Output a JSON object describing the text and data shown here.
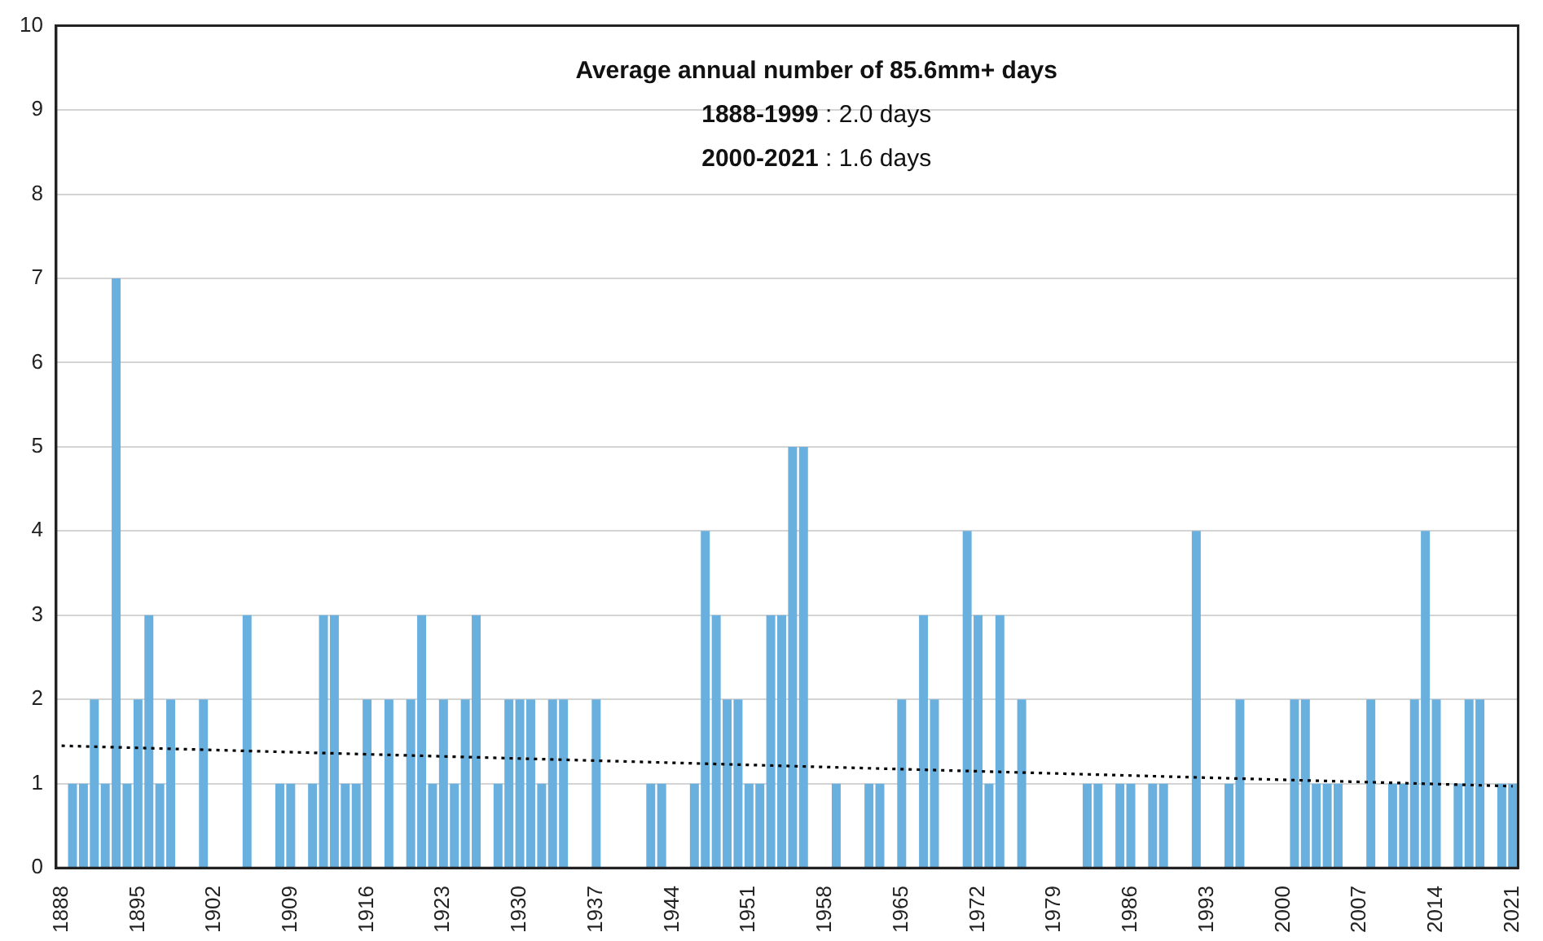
{
  "chart_data": {
    "type": "bar",
    "title": "Average annual number of 85.6mm+ days",
    "annotations": [
      "1888-1999 : 2.0 days",
      "2000-2021 : 1.6 days"
    ],
    "categories": [
      "1888",
      null,
      null,
      null,
      null,
      null,
      null,
      "1895",
      null,
      null,
      null,
      null,
      null,
      null,
      "1902",
      null,
      null,
      null,
      null,
      null,
      null,
      "1909",
      null,
      null,
      null,
      null,
      null,
      null,
      "1916",
      null,
      null,
      null,
      null,
      null,
      null,
      "1923",
      null,
      null,
      null,
      null,
      null,
      null,
      "1930",
      null,
      null,
      null,
      null,
      null,
      null,
      "1937",
      null,
      null,
      null,
      null,
      null,
      null,
      "1944",
      null,
      null,
      null,
      null,
      null,
      null,
      "1951",
      null,
      null,
      null,
      null,
      null,
      null,
      "1958",
      null,
      null,
      null,
      null,
      null,
      null,
      "1965",
      null,
      null,
      null,
      null,
      null,
      null,
      "1972",
      null,
      null,
      null,
      null,
      null,
      null,
      "1979",
      null,
      null,
      null,
      null,
      null,
      null,
      "1986",
      null,
      null,
      null,
      null,
      null,
      null,
      "1993",
      null,
      null,
      null,
      null,
      null,
      null,
      "2000",
      null,
      null,
      null,
      null,
      null,
      null,
      "2007",
      null,
      null,
      null,
      null,
      null,
      null,
      "2014",
      null,
      null,
      null,
      null,
      null,
      null,
      "2021"
    ],
    "series": [
      {
        "color": "#6ab0de",
        "values": [
          0,
          1,
          1,
          2,
          1,
          7,
          1,
          2,
          3,
          1,
          2,
          0,
          0,
          2,
          0,
          0,
          0,
          3,
          0,
          0,
          1,
          1,
          0,
          1,
          3,
          3,
          1,
          1,
          2,
          0,
          2,
          0,
          2,
          3,
          1,
          2,
          1,
          2,
          3,
          0,
          1,
          2,
          2,
          2,
          1,
          2,
          2,
          0,
          0,
          2,
          0,
          0,
          0,
          0,
          1,
          1,
          0,
          0,
          1,
          4,
          3,
          2,
          2,
          1,
          1,
          3,
          3,
          5,
          5,
          0,
          0,
          1,
          0,
          0,
          1,
          1,
          0,
          2,
          0,
          3,
          2,
          0,
          0,
          4,
          3,
          1,
          3,
          0,
          2,
          0,
          0,
          0,
          0,
          0,
          1,
          1,
          0,
          1,
          1,
          0,
          1,
          1,
          0,
          0,
          4,
          0,
          0,
          1,
          2,
          0,
          0,
          0,
          0,
          2,
          2,
          1,
          1,
          1,
          0,
          0,
          2,
          0,
          1,
          1,
          2,
          4,
          2,
          0,
          1,
          2,
          2,
          0,
          1,
          1
        ]
      },
      {
        "type": "line",
        "color": "#000000",
        "line_style": "dotted",
        "values": [
          1.45,
          null,
          null,
          null,
          null,
          null,
          null,
          null,
          null,
          null,
          null,
          null,
          null,
          null,
          null,
          null,
          null,
          null,
          null,
          null,
          null,
          null,
          null,
          null,
          null,
          null,
          null,
          null,
          null,
          null,
          null,
          null,
          null,
          null,
          null,
          null,
          null,
          null,
          null,
          null,
          null,
          null,
          null,
          null,
          null,
          null,
          null,
          null,
          null,
          null,
          null,
          null,
          null,
          null,
          null,
          null,
          null,
          null,
          null,
          null,
          null,
          null,
          null,
          null,
          null,
          null,
          null,
          null,
          null,
          null,
          null,
          null,
          null,
          null,
          null,
          null,
          null,
          null,
          null,
          null,
          null,
          null,
          null,
          null,
          null,
          null,
          null,
          null,
          null,
          null,
          null,
          null,
          null,
          null,
          null,
          null,
          null,
          null,
          null,
          null,
          null,
          null,
          null,
          null,
          null,
          null,
          null,
          null,
          null,
          null,
          null,
          null,
          null,
          null,
          null,
          null,
          null,
          null,
          null,
          null,
          null,
          null,
          null,
          null,
          null,
          null,
          null,
          null,
          null,
          null,
          null,
          null,
          null,
          0.97
        ]
      }
    ],
    "ylim": [
      0,
      10
    ],
    "yticks": [
      0,
      1,
      2,
      3,
      4,
      5,
      6,
      7,
      8,
      9,
      10
    ],
    "grid": "y",
    "legend": false,
    "marker": "none"
  }
}
